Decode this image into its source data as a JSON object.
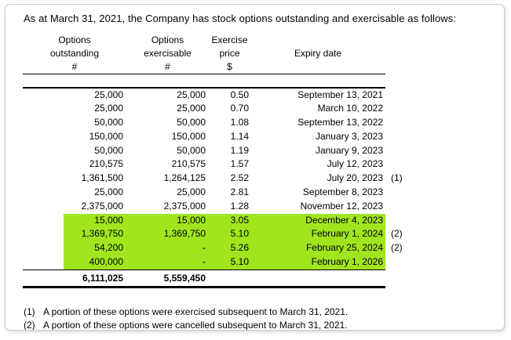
{
  "title": "As at March 31, 2021, the Company has stock options outstanding and exercisable as follows:",
  "colors": {
    "highlight": "#A0E51E"
  },
  "table": {
    "header": {
      "col1": {
        "line1": "Options",
        "line2": "outstanding",
        "unit": "#"
      },
      "col2": {
        "line1": "Options",
        "line2": "exercisable",
        "unit": "#"
      },
      "col3": {
        "line1": "Exercise",
        "line2": "price",
        "unit": "$"
      },
      "col4": {
        "line1": "",
        "line2": "Expiry date",
        "unit": ""
      }
    },
    "rows": [
      {
        "outstanding": "25,000",
        "exercisable": "25,000",
        "price": "0.50",
        "expiry": "September 13, 2021",
        "note": "",
        "highlight": false
      },
      {
        "outstanding": "25,000",
        "exercisable": "25,000",
        "price": "0.70",
        "expiry": "March 10, 2022",
        "note": "",
        "highlight": false
      },
      {
        "outstanding": "50,000",
        "exercisable": "50,000",
        "price": "1.08",
        "expiry": "September 13, 2022",
        "note": "",
        "highlight": false
      },
      {
        "outstanding": "150,000",
        "exercisable": "150,000",
        "price": "1.14",
        "expiry": "January 3, 2023",
        "note": "",
        "highlight": false
      },
      {
        "outstanding": "50,000",
        "exercisable": "50,000",
        "price": "1.19",
        "expiry": "January 9, 2023",
        "note": "",
        "highlight": false
      },
      {
        "outstanding": "210,575",
        "exercisable": "210,575",
        "price": "1.57",
        "expiry": "July 12, 2023",
        "note": "",
        "highlight": false
      },
      {
        "outstanding": "1,361,500",
        "exercisable": "1,264,125",
        "price": "2.52",
        "expiry": "July 20, 2023",
        "note": "(1)",
        "highlight": false
      },
      {
        "outstanding": "25,000",
        "exercisable": "25,000",
        "price": "2.81",
        "expiry": "September 8, 2023",
        "note": "",
        "highlight": false
      },
      {
        "outstanding": "2,375,000",
        "exercisable": "2,375,000",
        "price": "1.28",
        "expiry": "November 12, 2023",
        "note": "",
        "highlight": false
      },
      {
        "outstanding": "15,000",
        "exercisable": "15,000",
        "price": "3.05",
        "expiry": "December 4, 2023",
        "note": "",
        "highlight": true
      },
      {
        "outstanding": "1,369,750",
        "exercisable": "1,369,750",
        "price": "5.10",
        "expiry": "February 1, 2024",
        "note": "(2)",
        "highlight": true
      },
      {
        "outstanding": "54,200",
        "exercisable": "-",
        "price": "5.26",
        "expiry": "February 25, 2024",
        "note": "(2)",
        "highlight": true
      },
      {
        "outstanding": "400,000",
        "exercisable": "-",
        "price": "5.10",
        "expiry": "February 1, 2026",
        "note": "",
        "highlight": true
      }
    ],
    "totals": {
      "outstanding": "6,111,025",
      "exercisable": "5,559,450"
    }
  },
  "footnotes": [
    {
      "ref": "(1)",
      "text": "A portion of these options were exercised subsequent to March 31, 2021."
    },
    {
      "ref": "(2)",
      "text": "A portion of these options were cancelled subsequent to March 31, 2021."
    }
  ]
}
